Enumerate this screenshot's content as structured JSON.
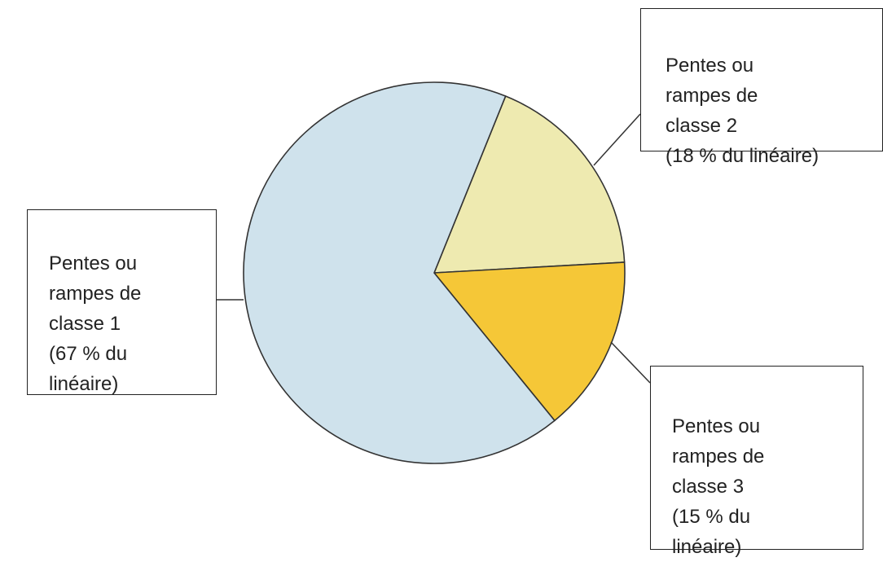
{
  "chart_data": {
    "type": "pie",
    "title": "",
    "slices": [
      {
        "label": "Pentes ou\nrampes de\nclasse 1\n(67 % du\nlinéaire)",
        "value": 67,
        "color": "#cfe2ec"
      },
      {
        "label": "Pentes ou\nrampes de\nclasse 2\n(18 % du linéaire)",
        "value": 18,
        "color": "#eeeab0"
      },
      {
        "label": "Pentes ou\nrampes de\nclasse 3\n(15 % du\nlinéaire)",
        "value": 15,
        "color": "#f5c737"
      }
    ],
    "stroke_color": "#333333",
    "legend": "callout boxes with leader lines"
  }
}
